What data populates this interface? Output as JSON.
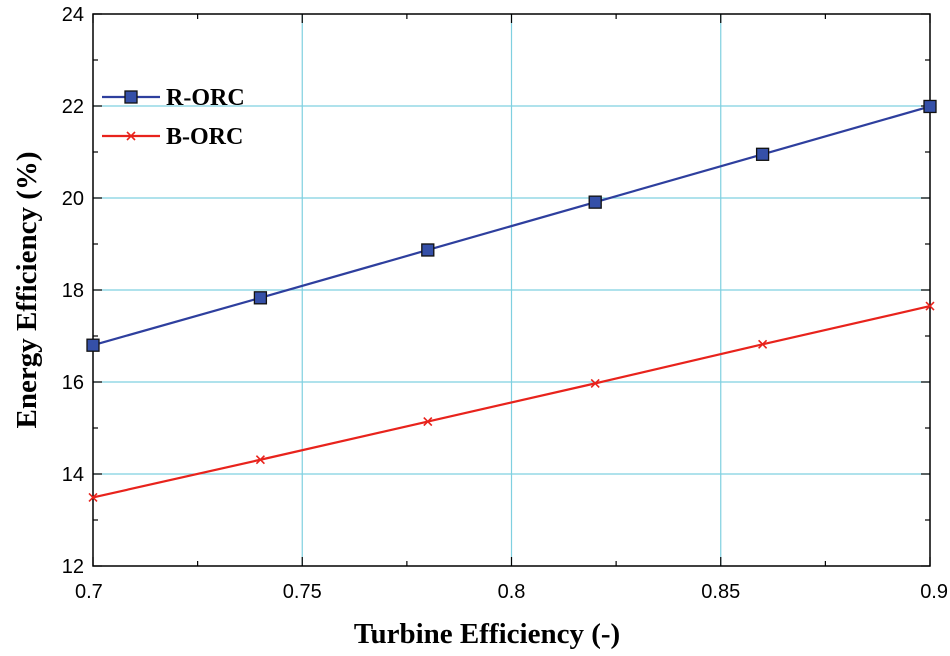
{
  "chart_data": {
    "type": "line",
    "title": "",
    "xlabel": "Turbine Efficiency (-)",
    "ylabel": "Energy Efficiency (%)",
    "xlim": [
      0.7,
      0.9
    ],
    "ylim": [
      12,
      24
    ],
    "xticks": [
      0.7,
      0.75,
      0.8,
      0.85,
      0.9
    ],
    "xtick_labels": [
      "0.7",
      "0.75",
      "0.8",
      "0.85",
      "0.9"
    ],
    "yticks": [
      12,
      14,
      16,
      18,
      20,
      22,
      24
    ],
    "ytick_labels": [
      "12",
      "14",
      "16",
      "18",
      "20",
      "22",
      "24"
    ],
    "grid": true,
    "legend_position": "top-left",
    "series": [
      {
        "name": "R-ORC",
        "color": "#2e3f9e",
        "marker": "square",
        "marker_fill": "#3550a8",
        "x": [
          0.7,
          0.74,
          0.78,
          0.82,
          0.86,
          0.9
        ],
        "y": [
          16.8,
          17.83,
          18.87,
          19.91,
          20.95,
          21.99
        ]
      },
      {
        "name": "B-ORC",
        "color": "#e8231c",
        "marker": "x",
        "x": [
          0.7,
          0.74,
          0.78,
          0.82,
          0.86,
          0.9
        ],
        "y": [
          13.49,
          14.31,
          15.14,
          15.97,
          16.82,
          17.65
        ]
      }
    ]
  }
}
